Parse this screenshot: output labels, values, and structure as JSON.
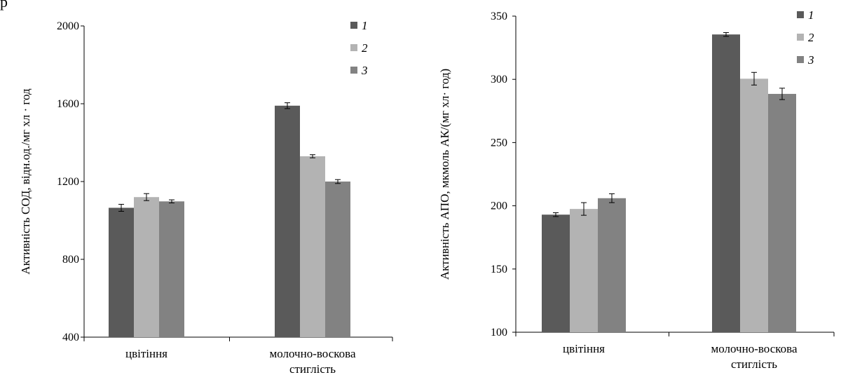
{
  "corner_text": "р",
  "colors": {
    "s1": "#5a5a5a",
    "s2": "#b3b3b3",
    "s3": "#828282"
  },
  "chart_data": [
    {
      "type": "bar",
      "categories": [
        "цвітіння",
        "молочно-воскова стиглість"
      ],
      "category_lines": [
        [
          "цвітіння"
        ],
        [
          "молочно-воскова",
          "стиглість"
        ]
      ],
      "ylabel": "Активність СОД, відн.од./мг хл · год",
      "ylim": [
        400,
        2000
      ],
      "yticks": [
        400,
        800,
        1200,
        1600,
        2000
      ],
      "legend_position": "top-right",
      "series": [
        {
          "name": "1",
          "values": [
            1065,
            1590
          ],
          "errors": [
            18,
            15
          ]
        },
        {
          "name": "2",
          "values": [
            1120,
            1330
          ],
          "errors": [
            18,
            8
          ]
        },
        {
          "name": "3",
          "values": [
            1098,
            1200
          ],
          "errors": [
            8,
            10
          ]
        }
      ]
    },
    {
      "type": "bar",
      "categories": [
        "цвітіння",
        "молочно-воскова стиглість"
      ],
      "category_lines": [
        [
          "цвітіння"
        ],
        [
          "молочно-воскова",
          "стиглість"
        ]
      ],
      "ylabel": "Активність АПО, мкмоль АК/(мг хл· год)",
      "ylim": [
        100,
        350
      ],
      "yticks": [
        100,
        150,
        200,
        250,
        300,
        350
      ],
      "legend_position": "top-right",
      "series": [
        {
          "name": "1",
          "values": [
            193,
            335.5
          ],
          "errors": [
            1.5,
            1.5
          ]
        },
        {
          "name": "2",
          "values": [
            197.5,
            300.5
          ],
          "errors": [
            5,
            5
          ]
        },
        {
          "name": "3",
          "values": [
            206,
            288.5
          ],
          "errors": [
            3.5,
            4.5
          ]
        }
      ]
    }
  ]
}
